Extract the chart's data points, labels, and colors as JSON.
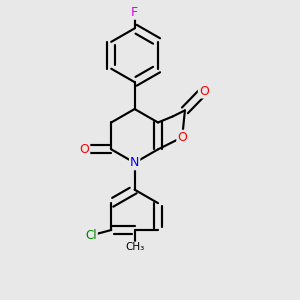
{
  "background_color": "#e8e8e8",
  "bond_color": "#000000",
  "atom_colors": {
    "F": "#e000e0",
    "O": "#ff0000",
    "N": "#0000ff",
    "Cl": "#008000",
    "C": "#000000"
  },
  "figsize": [
    3.0,
    3.0
  ],
  "dpi": 100
}
